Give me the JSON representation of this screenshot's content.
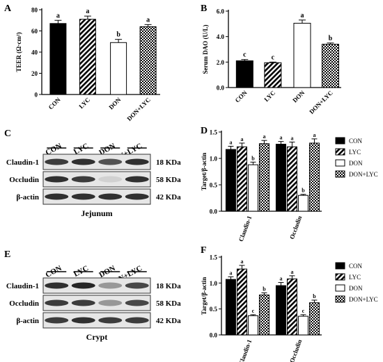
{
  "panels": {
    "A": {
      "letter": "A"
    },
    "B": {
      "letter": "B"
    },
    "C": {
      "letter": "C"
    },
    "D": {
      "letter": "D"
    },
    "E": {
      "letter": "E"
    },
    "F": {
      "letter": "F"
    }
  },
  "groups": [
    "CON",
    "LYC",
    "DON",
    "DON+LYC"
  ],
  "bar_fills": {
    "CON": "#000000",
    "LYC": "hatch-diagonal",
    "DON": "#ffffff",
    "DON+LYC": "checkerboard"
  },
  "chart_data": [
    {
      "id": "A",
      "type": "bar",
      "categories": [
        "CON",
        "LYC",
        "DON",
        "DON+LYC"
      ],
      "values": [
        67,
        71,
        49,
        64
      ],
      "errors": [
        3,
        3,
        3,
        2
      ],
      "sig_letters": [
        "a",
        "a",
        "b",
        "a"
      ],
      "ylabel": "TEER (Ω·cm²)",
      "ylim": [
        0,
        80
      ],
      "yticks": [
        0,
        20,
        40,
        60,
        80
      ],
      "ytick_labels": [
        "0",
        "20",
        "40",
        "60",
        "80"
      ]
    },
    {
      "id": "B",
      "type": "bar",
      "categories": [
        "CON",
        "LYC",
        "DON",
        "DON+LYC"
      ],
      "values": [
        2.1,
        1.95,
        5.05,
        3.4
      ],
      "errors": [
        0.1,
        0.05,
        0.25,
        0.1
      ],
      "sig_letters": [
        "c",
        "c",
        "a",
        "b"
      ],
      "ylabel": "Serum DAO (U/L)",
      "ylim": [
        0,
        6
      ],
      "yticks": [
        0,
        2,
        4,
        6
      ],
      "ytick_labels": [
        "0.0",
        "2.0",
        "4.0",
        "6.0"
      ]
    },
    {
      "id": "D",
      "type": "bar",
      "categories": [
        "Claudin-1",
        "Occludin"
      ],
      "series": [
        {
          "name": "CON",
          "values": [
            1.17,
            1.27
          ],
          "errors": [
            0.06,
            0.05
          ],
          "sig_letters": [
            "a",
            "a"
          ]
        },
        {
          "name": "LYC",
          "values": [
            1.22,
            1.22
          ],
          "errors": [
            0.07,
            0.09
          ],
          "sig_letters": [
            "a",
            "a"
          ]
        },
        {
          "name": "DON",
          "values": [
            0.88,
            0.3
          ],
          "errors": [
            0.05,
            0.02
          ],
          "sig_letters": [
            "b",
            "b"
          ]
        },
        {
          "name": "DON+LYC",
          "values": [
            1.28,
            1.29
          ],
          "errors": [
            0.06,
            0.08
          ],
          "sig_letters": [
            "a",
            "a"
          ]
        }
      ],
      "ylabel": "Target/β-actin",
      "ylim": [
        0,
        1.5
      ],
      "yticks": [
        0,
        0.5,
        1.0,
        1.5
      ],
      "ytick_labels": [
        "0.0",
        "0.5",
        "1.0",
        "1.5"
      ],
      "legend_position": "right"
    },
    {
      "id": "F",
      "type": "bar",
      "categories": [
        "Claudin-1",
        "Occludin"
      ],
      "series": [
        {
          "name": "CON",
          "values": [
            1.07,
            0.95
          ],
          "errors": [
            0.05,
            0.06
          ],
          "sig_letters": [
            "a",
            "a"
          ]
        },
        {
          "name": "LYC",
          "values": [
            1.27,
            1.08
          ],
          "errors": [
            0.07,
            0.06
          ],
          "sig_letters": [
            "a",
            "a"
          ]
        },
        {
          "name": "DON",
          "values": [
            0.37,
            0.36
          ],
          "errors": [
            0.02,
            0.03
          ],
          "sig_letters": [
            "c",
            "c"
          ]
        },
        {
          "name": "DON+LYC",
          "values": [
            0.77,
            0.62
          ],
          "errors": [
            0.04,
            0.05
          ],
          "sig_letters": [
            "b",
            "b"
          ]
        }
      ],
      "ylabel": "Target/β-actin",
      "ylim": [
        0,
        1.5
      ],
      "yticks": [
        0,
        0.5,
        1.0,
        1.5
      ],
      "ytick_labels": [
        "0.0",
        "0.5",
        "1.0",
        "1.5"
      ],
      "legend_position": "right"
    }
  ],
  "blots": [
    {
      "id": "C",
      "lanes": [
        "CON",
        "LYC",
        "DON",
        "DON+LYC"
      ],
      "rows": [
        {
          "protein": "Claudin-1",
          "size": "18 KDa",
          "intensity": [
            0.85,
            0.9,
            0.75,
            0.9
          ]
        },
        {
          "protein": "Occludin",
          "size": "58 KDa",
          "intensity": [
            0.9,
            0.85,
            0.2,
            0.9
          ]
        },
        {
          "protein": "β-actin",
          "size": "42 KDa",
          "intensity": [
            0.9,
            0.9,
            0.9,
            0.9
          ]
        }
      ],
      "caption": "Jejunum"
    },
    {
      "id": "E",
      "lanes": [
        "CON",
        "LYC",
        "DON",
        "DON+LYC"
      ],
      "rows": [
        {
          "protein": "Claudin-1",
          "size": "18 KDa",
          "intensity": [
            0.9,
            0.95,
            0.45,
            0.8
          ]
        },
        {
          "protein": "Occludin",
          "size": "58 KDa",
          "intensity": [
            0.85,
            0.85,
            0.45,
            0.8
          ]
        },
        {
          "protein": "β-actin",
          "size": "42 KDa",
          "intensity": [
            0.85,
            0.9,
            0.85,
            0.85
          ]
        }
      ],
      "caption": "Crypt"
    }
  ]
}
